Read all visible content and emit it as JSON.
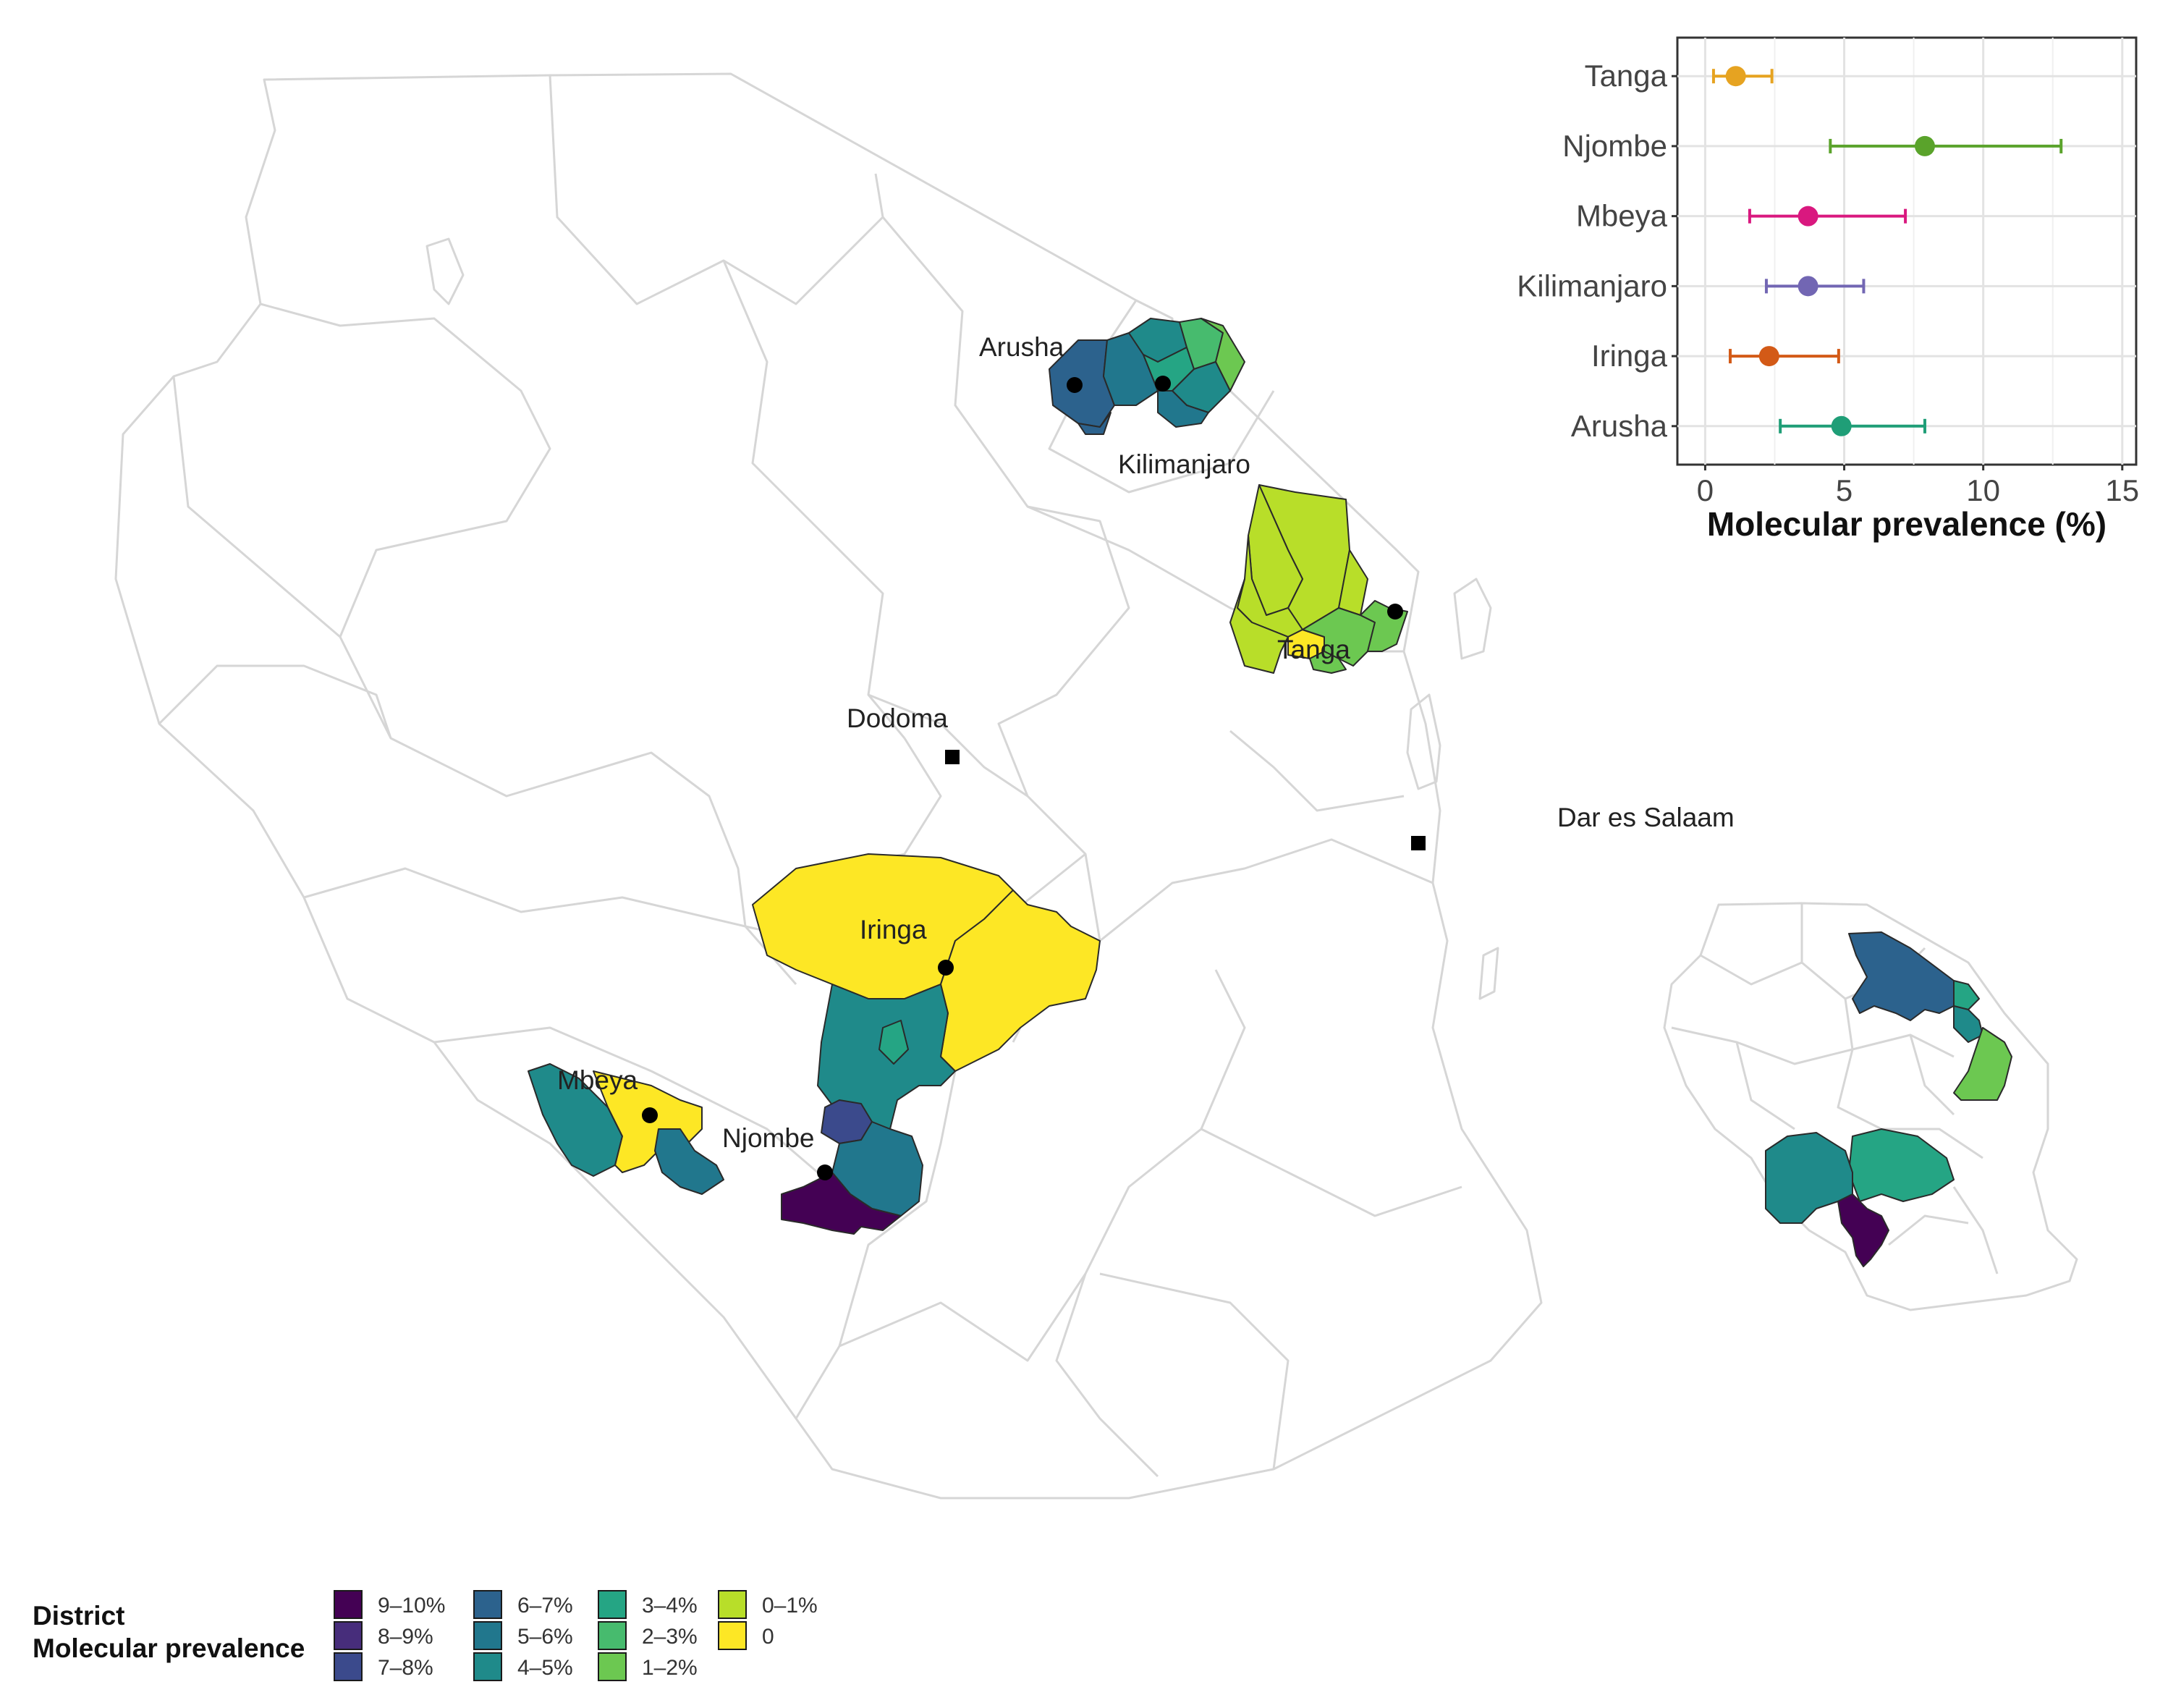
{
  "map": {
    "labels": {
      "arusha": "Arusha",
      "kilimanjaro": "Kilimanjaro",
      "tanga": "Tanga",
      "dodoma": "Dodoma",
      "dar": "Dar es Salaam",
      "iringa": "Iringa",
      "mbeya": "Mbeya",
      "njombe": "Njombe"
    }
  },
  "legend": {
    "title_line1": "District",
    "title_line2": "Molecular prevalence",
    "items": [
      {
        "label": "9–10%",
        "color": "#440154"
      },
      {
        "label": "8–9%",
        "color": "#472d7b"
      },
      {
        "label": "7–8%",
        "color": "#3b4a8c"
      },
      {
        "label": "6–7%",
        "color": "#2c628d"
      },
      {
        "label": "5–6%",
        "color": "#21778d"
      },
      {
        "label": "4–5%",
        "color": "#1f8a8a"
      },
      {
        "label": "3–4%",
        "color": "#25a584"
      },
      {
        "label": "2–3%",
        "color": "#47bb6e"
      },
      {
        "label": "1–2%",
        "color": "#6cc851"
      },
      {
        "label": "0–1%",
        "color": "#b8de29"
      },
      {
        "label": "0",
        "color": "#fde725"
      }
    ]
  },
  "chart_data": {
    "type": "scatter",
    "xlabel": "Molecular prevalence (%)",
    "xlim": [
      -1,
      15.5
    ],
    "xticks": [
      "0",
      "5",
      "10",
      "15"
    ],
    "grid": true,
    "series": [
      {
        "name": "Tanga",
        "value": 1.1,
        "ci": [
          0.3,
          2.4
        ],
        "color": "#e6a321"
      },
      {
        "name": "Njombe",
        "value": 7.9,
        "ci": [
          4.5,
          12.8
        ],
        "color": "#5aa32b"
      },
      {
        "name": "Mbeya",
        "value": 3.7,
        "ci": [
          1.6,
          7.2
        ],
        "color": "#d9187f"
      },
      {
        "name": "Kilimanjaro",
        "value": 3.7,
        "ci": [
          2.2,
          5.7
        ],
        "color": "#7266b3"
      },
      {
        "name": "Iringa",
        "value": 2.3,
        "ci": [
          0.9,
          4.8
        ],
        "color": "#d35a17"
      },
      {
        "name": "Arusha",
        "value": 4.9,
        "ci": [
          2.7,
          7.9
        ],
        "color": "#1f9e77"
      }
    ]
  }
}
